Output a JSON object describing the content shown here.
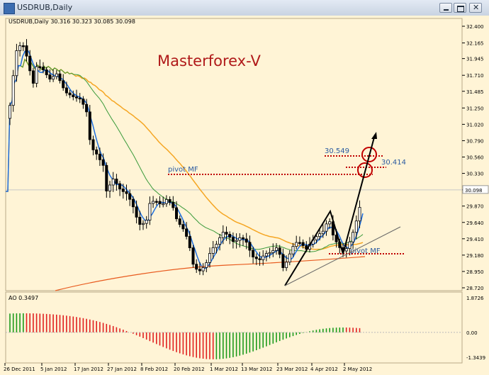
{
  "window": {
    "title": "USDRUB,Daily"
  },
  "header_text": "USDRUB,Daily  30.316 30.323 30.085 30.098",
  "watermark": "Masterforex-V",
  "ao_label": "AO 0.3497",
  "colors": {
    "background": "#fff4d6",
    "candle_bull": "#ffffff",
    "candle_bear": "#000000",
    "ma_fast": "#1e6fe0",
    "ma_mid": "#3a9a3a",
    "ma_slow": "#f5a623",
    "ma_long": "#e85a1e",
    "annotation_red": "#c00000",
    "ao_up": "#1a9a1a",
    "ao_down": "#e02020",
    "watermark": "#b01a1a"
  },
  "annotations": {
    "level_upper": "30.549",
    "level_lower": "30.414",
    "pivot_upper": "pivot MF",
    "pivot_lower": "pivot MF"
  },
  "chart_data": {
    "type": "candlestick",
    "symbol": "USDRUB",
    "timeframe": "Daily",
    "last_bar": {
      "open": 30.316,
      "high": 30.323,
      "low": 30.085,
      "close": 30.098
    },
    "current_price_label": "30.098",
    "ylim": [
      28.72,
      32.48
    ],
    "y_ticks": [
      "32.400",
      "32.165",
      "31.945",
      "31.710",
      "31.485",
      "31.250",
      "31.020",
      "30.790",
      "30.560",
      "30.330",
      "30.098",
      "29.870",
      "29.640",
      "29.410",
      "29.180",
      "28.950",
      "28.720"
    ],
    "x_ticks": [
      "26 Dec 2011",
      "5 Jan 2012",
      "17 Jan 2012",
      "27 Jan 2012",
      "8 Feb 2012",
      "20 Feb 2012",
      "1 Mar 2012",
      "13 Mar 2012",
      "23 Mar 2012",
      "4 Apr 2012",
      "2 May 2012"
    ],
    "levels": {
      "upper": 30.549,
      "lower": 30.414,
      "pivot_upper": 30.3,
      "pivot_lower": 29.22
    },
    "ao_ticks": [
      "1.8726",
      "0.00",
      "-1.3439"
    ],
    "ao_range": [
      -1.3439,
      1.8726
    ]
  }
}
